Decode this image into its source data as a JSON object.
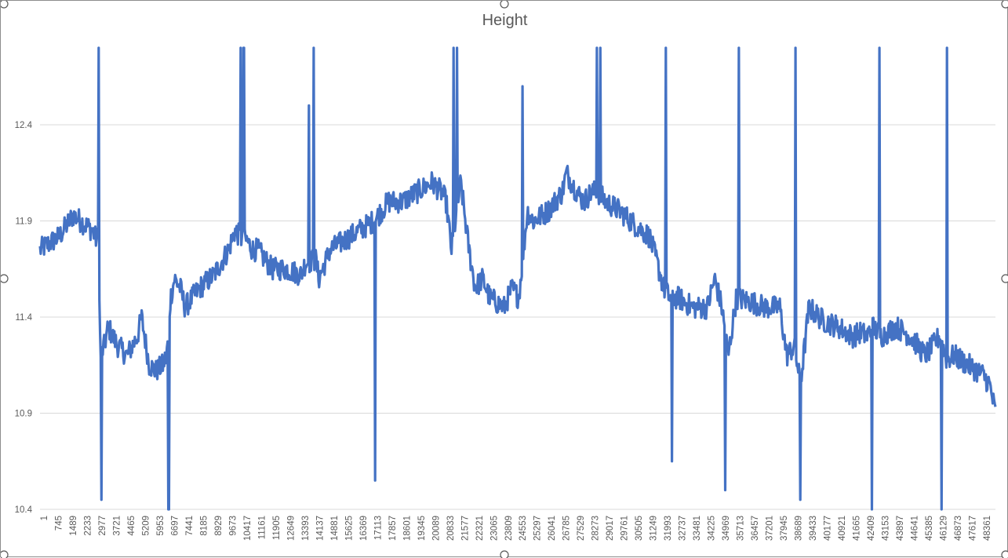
{
  "chart_data": {
    "type": "line",
    "title": "Height",
    "xlabel": "",
    "ylabel": "",
    "ylim": [
      10.4,
      12.8
    ],
    "yticks": [
      "10.4",
      "10.9",
      "11.4",
      "11.9",
      "12.4"
    ],
    "xticks": [
      "1",
      "745",
      "1489",
      "2233",
      "2977",
      "3721",
      "4465",
      "5209",
      "5953",
      "6697",
      "7441",
      "8185",
      "8929",
      "9673",
      "10417",
      "11161",
      "11905",
      "12649",
      "13393",
      "14137",
      "14881",
      "15625",
      "16369",
      "17113",
      "17857",
      "18601",
      "19345",
      "20089",
      "20833",
      "21577",
      "22321",
      "23065",
      "23809",
      "24553",
      "25297",
      "26041",
      "26785",
      "27529",
      "28273",
      "29017",
      "29761",
      "30505",
      "31249",
      "31993",
      "32737",
      "33481",
      "34225",
      "34969",
      "35713",
      "36457",
      "37201",
      "37945",
      "38689",
      "39433",
      "40177",
      "40921",
      "41665",
      "42409",
      "43153",
      "43897",
      "44641",
      "45385",
      "46129",
      "46873",
      "47617",
      "48361"
    ],
    "grid": "horizontal",
    "legend": "none",
    "line_color": "#4472C4",
    "series": [
      {
        "x": [
          1,
          1000,
          1700,
          2700,
          2900,
          2977,
          3100,
          3300,
          3500,
          3721,
          4000,
          4465,
          5000,
          5209,
          5600,
          5953,
          6300,
          6500,
          6697,
          6900,
          7200,
          7441,
          8185,
          8929,
          9673,
          10000,
          10417,
          10600,
          10900,
          11161,
          11905,
          12649,
          13393,
          13600,
          14137,
          14300,
          14881,
          15625,
          16369,
          17113,
          17500,
          17857,
          18601,
          19345,
          20089,
          20600,
          20833,
          21100,
          21577,
          22000,
          22321,
          22700,
          23065,
          23809,
          24200,
          24553,
          25000,
          25297,
          26041,
          26785,
          27000,
          27529,
          27900,
          28273,
          28600,
          29017,
          29761,
          30505,
          31249,
          31600,
          31993,
          32300,
          32737,
          33481,
          34225,
          34600,
          34969,
          35300,
          35713,
          36457,
          37201,
          37945,
          38300,
          38689,
          39000,
          39433,
          40177,
          40921,
          41665,
          42100,
          42409,
          42700,
          43153,
          43897,
          44641,
          45385,
          45800,
          46129,
          46500,
          46873,
          47617,
          48361,
          48700,
          49000
        ],
        "y": [
          11.75,
          11.82,
          11.93,
          11.85,
          11.8,
          11.82,
          11.2,
          11.25,
          11.35,
          11.3,
          11.25,
          11.2,
          11.3,
          11.4,
          11.15,
          11.12,
          11.15,
          11.2,
          11.5,
          11.6,
          11.55,
          11.45,
          11.55,
          11.62,
          11.75,
          11.85,
          11.8,
          11.8,
          11.75,
          11.75,
          11.65,
          11.65,
          11.62,
          11.68,
          11.7,
          11.6,
          11.75,
          11.8,
          11.85,
          11.9,
          11.95,
          12.0,
          12.0,
          12.05,
          12.1,
          12.05,
          12.0,
          11.75,
          12.1,
          11.75,
          11.55,
          11.6,
          11.5,
          11.45,
          11.55,
          11.5,
          11.95,
          11.9,
          11.95,
          12.05,
          12.15,
          12.05,
          12.0,
          12.05,
          12.05,
          12.0,
          11.95,
          11.88,
          11.82,
          11.7,
          11.55,
          11.5,
          11.5,
          11.45,
          11.45,
          11.6,
          11.45,
          11.2,
          11.5,
          11.48,
          11.45,
          11.45,
          11.2,
          11.25,
          11.05,
          11.45,
          11.38,
          11.35,
          11.3,
          11.32,
          11.3,
          11.35,
          11.3,
          11.35,
          11.3,
          11.2,
          11.25,
          11.3,
          11.18,
          11.2,
          11.15,
          11.1,
          11.05,
          10.9
        ]
      }
    ],
    "annotations": []
  }
}
